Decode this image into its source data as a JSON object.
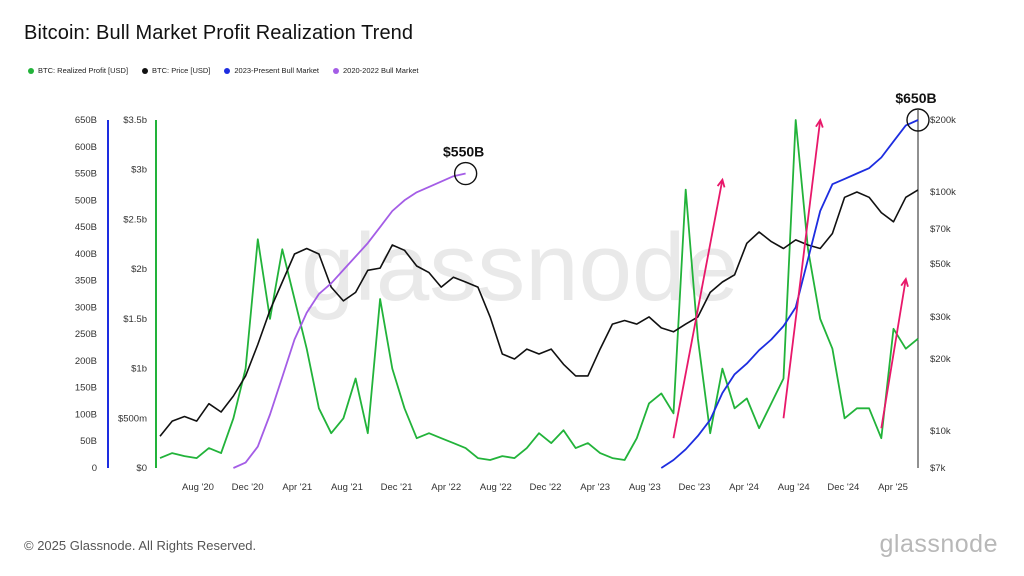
{
  "title": "Bitcoin: Bull Market Profit Realization Trend",
  "footer": "© 2025 Glassnode. All Rights Reserved.",
  "brand": "glassnode",
  "watermark": "glassnode",
  "legend": [
    {
      "label": "BTC: Realized Profit [USD]",
      "color": "#22b33a"
    },
    {
      "label": "BTC: Price [USD]",
      "color": "#111111"
    },
    {
      "label": "2023-Present Bull Market",
      "color": "#1d2de0"
    },
    {
      "label": "2020-2022 Bull Market",
      "color": "#a45de6"
    }
  ],
  "colors": {
    "realized_profit": "#22b33a",
    "price": "#111111",
    "bull_2023": "#1d2de0",
    "bull_2020": "#a45de6",
    "arrows": "#e8186a"
  },
  "chart_data": {
    "type": "line",
    "x_labels": [
      "Aug '20",
      "Dec '20",
      "Apr '21",
      "Aug '21",
      "Dec '21",
      "Apr '22",
      "Aug '22",
      "Dec '22",
      "Apr '23",
      "Aug '23",
      "Dec '23",
      "Apr '24",
      "Aug '24",
      "Dec '24",
      "Apr '25"
    ],
    "x_domain": [
      0,
      62
    ],
    "axes": {
      "cumulative_left": {
        "ticks": [
          "0",
          "50B",
          "100B",
          "150B",
          "200B",
          "250B",
          "300B",
          "350B",
          "400B",
          "450B",
          "500B",
          "550B",
          "600B",
          "650B"
        ],
        "range": [
          0,
          650
        ],
        "unit": "B"
      },
      "realized_profit": {
        "ticks": [
          "$0",
          "$500m",
          "$1b",
          "$1.5b",
          "$2b",
          "$2.5b",
          "$3b",
          "$3.5b"
        ],
        "range": [
          0,
          3.5
        ],
        "unit": "b"
      },
      "price": {
        "ticks": [
          "$7k",
          "$10k",
          "$20k",
          "$30k",
          "$50k",
          "$70k",
          "$100k",
          "$200k"
        ],
        "tick_values": [
          7,
          10,
          20,
          30,
          50,
          70,
          100,
          200
        ],
        "range": [
          7,
          200
        ],
        "scale": "log",
        "unit": "k"
      }
    },
    "series": [
      {
        "name": "BTC: Price [USD]",
        "axis": "price",
        "x": [
          0,
          1,
          2,
          3,
          4,
          5,
          6,
          7,
          8,
          9,
          10,
          11,
          12,
          13,
          14,
          15,
          16,
          17,
          18,
          19,
          20,
          21,
          22,
          23,
          24,
          25,
          26,
          27,
          28,
          29,
          30,
          31,
          32,
          33,
          34,
          35,
          36,
          37,
          38,
          39,
          40,
          41,
          42,
          43,
          44,
          45,
          46,
          47,
          48,
          49,
          50,
          51,
          52,
          53,
          54,
          55,
          56,
          57,
          58,
          59,
          60,
          61,
          62
        ],
        "y": [
          9.5,
          11,
          11.5,
          11,
          13,
          12,
          14,
          17,
          23,
          32,
          42,
          55,
          58,
          55,
          40,
          35,
          38,
          47,
          48,
          60,
          57,
          49,
          46,
          40,
          44,
          42,
          40,
          30,
          21,
          20,
          22,
          21,
          22,
          19,
          17,
          17,
          22,
          28,
          29,
          28,
          30,
          27,
          26,
          28,
          30,
          38,
          42,
          45,
          61,
          68,
          62,
          58,
          63,
          60,
          58,
          67,
          95,
          100,
          95,
          82,
          75,
          95,
          102
        ]
      },
      {
        "name": "BTC: Realized Profit [USD]",
        "axis": "realized_profit",
        "x": [
          0,
          1,
          2,
          3,
          4,
          5,
          6,
          7,
          8,
          9,
          10,
          11,
          12,
          13,
          14,
          15,
          16,
          17,
          18,
          19,
          20,
          21,
          22,
          23,
          24,
          25,
          26,
          27,
          28,
          29,
          30,
          31,
          32,
          33,
          34,
          35,
          36,
          37,
          38,
          39,
          40,
          41,
          42,
          43,
          44,
          45,
          46,
          47,
          48,
          49,
          50,
          51,
          52,
          53,
          54,
          55,
          56,
          57,
          58,
          59,
          60,
          61,
          62
        ],
        "y": [
          0.1,
          0.15,
          0.12,
          0.1,
          0.2,
          0.15,
          0.5,
          1.0,
          2.3,
          1.5,
          2.2,
          1.7,
          1.2,
          0.6,
          0.35,
          0.5,
          0.9,
          0.35,
          1.7,
          1.0,
          0.6,
          0.3,
          0.35,
          0.3,
          0.25,
          0.2,
          0.1,
          0.08,
          0.12,
          0.1,
          0.2,
          0.35,
          0.25,
          0.38,
          0.2,
          0.25,
          0.15,
          0.1,
          0.08,
          0.3,
          0.65,
          0.75,
          0.55,
          2.8,
          1.3,
          0.35,
          1.0,
          0.6,
          0.7,
          0.4,
          0.65,
          0.9,
          3.5,
          2.2,
          1.5,
          1.2,
          0.5,
          0.6,
          0.6,
          0.3,
          1.4,
          1.2,
          1.3
        ]
      },
      {
        "name": "2020-2022 Bull Market",
        "axis": "cumulative_left",
        "x": [
          6,
          7,
          8,
          9,
          10,
          11,
          12,
          13,
          14,
          15,
          16,
          17,
          18,
          19,
          20,
          21,
          22,
          23,
          24,
          25
        ],
        "y": [
          0,
          10,
          40,
          100,
          170,
          240,
          290,
          325,
          345,
          370,
          395,
          420,
          450,
          480,
          500,
          515,
          525,
          535,
          545,
          550
        ]
      },
      {
        "name": "2023-Present Bull Market",
        "axis": "cumulative_left",
        "x": [
          41,
          42,
          43,
          44,
          45,
          46,
          47,
          48,
          49,
          50,
          51,
          52,
          53,
          54,
          55,
          56,
          57,
          58,
          59,
          60,
          61,
          62
        ],
        "y": [
          0,
          15,
          35,
          60,
          90,
          140,
          175,
          195,
          220,
          240,
          265,
          300,
          390,
          480,
          530,
          540,
          550,
          560,
          580,
          610,
          640,
          650
        ]
      }
    ],
    "annotations": [
      {
        "text": "$550B",
        "series": "2020-2022 Bull Market",
        "x": 25,
        "y": 550
      },
      {
        "text": "$650B",
        "series": "2023-Present Bull Market",
        "x": 62,
        "y": 650
      }
    ],
    "trend_arrows": [
      {
        "from": [
          42,
          0.3
        ],
        "to": [
          46,
          2.9
        ]
      },
      {
        "from": [
          51,
          0.5
        ],
        "to": [
          54,
          3.5
        ]
      },
      {
        "from": [
          59,
          0.4
        ],
        "to": [
          61,
          1.9
        ]
      }
    ]
  }
}
